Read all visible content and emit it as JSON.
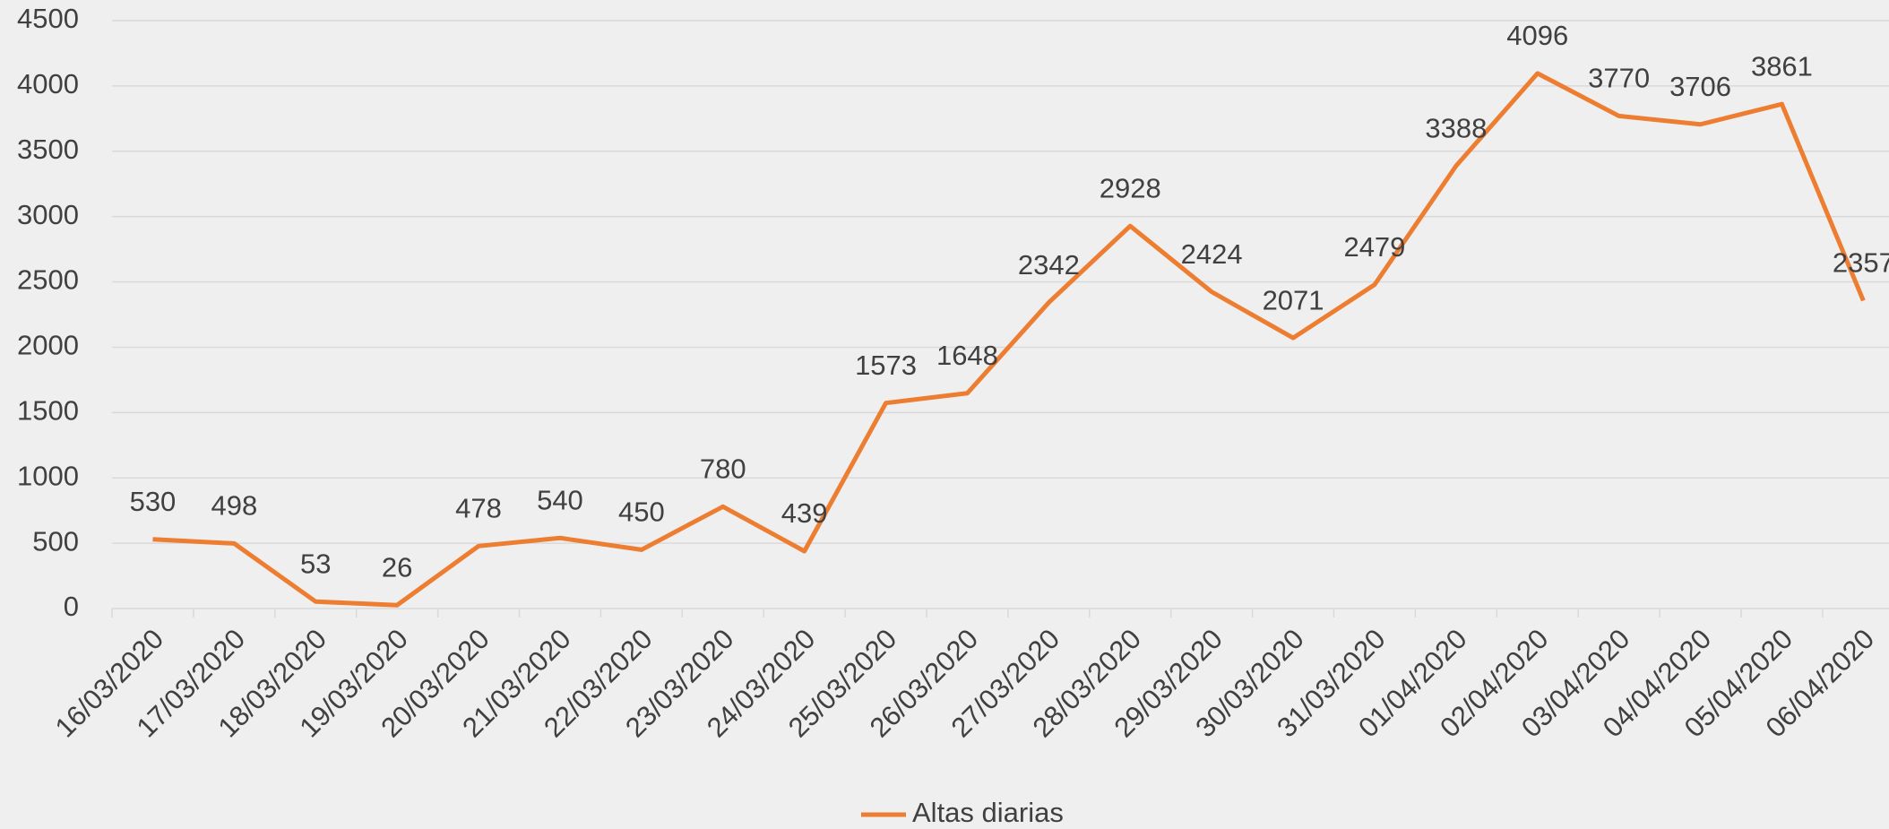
{
  "chart_data": {
    "type": "line",
    "categories": [
      "16/03/2020",
      "17/03/2020",
      "18/03/2020",
      "19/03/2020",
      "20/03/2020",
      "21/03/2020",
      "22/03/2020",
      "23/03/2020",
      "24/03/2020",
      "25/03/2020",
      "26/03/2020",
      "27/03/2020",
      "28/03/2020",
      "29/03/2020",
      "30/03/2020",
      "31/03/2020",
      "01/04/2020",
      "02/04/2020",
      "03/04/2020",
      "04/04/2020",
      "05/04/2020",
      "06/04/2020"
    ],
    "series": [
      {
        "name": "Altas diarias",
        "color": "#ed7d31",
        "values": [
          530,
          498,
          53,
          26,
          478,
          540,
          450,
          780,
          439,
          1573,
          1648,
          2342,
          2928,
          2424,
          2071,
          2479,
          3388,
          4096,
          3770,
          3706,
          3861,
          2357
        ]
      }
    ],
    "ylim": [
      0,
      4500
    ],
    "yticks": [
      0,
      500,
      1000,
      1500,
      2000,
      2500,
      3000,
      3500,
      4000,
      4500
    ],
    "grid": true,
    "legend": "bottom",
    "data_labels": true
  }
}
